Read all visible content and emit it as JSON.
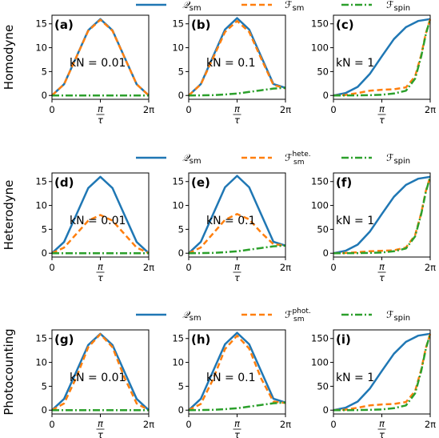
{
  "colors": {
    "Q": "#1f77b4",
    "F": "#ff7f0e",
    "spin": "#2ca02c"
  },
  "rows": [
    {
      "label": "Homodyne",
      "legend": [
        {
          "main": "𝒬",
          "sub": "sm",
          "sup": ""
        },
        {
          "main": "ℱ",
          "sub": "sm",
          "sup": ""
        },
        {
          "main": "ℱ",
          "sub": "spin",
          "sup": ""
        }
      ]
    },
    {
      "label": "Heterodyne",
      "legend": [
        {
          "main": "𝒬",
          "sub": "sm",
          "sup": ""
        },
        {
          "main": "ℱ",
          "sub": "sm",
          "sup": "hete."
        },
        {
          "main": "ℱ",
          "sub": "spin",
          "sup": ""
        }
      ]
    },
    {
      "label": "Photocounting",
      "legend": [
        {
          "main": "𝒬",
          "sub": "sm",
          "sup": ""
        },
        {
          "main": "ℱ",
          "sub": "sm",
          "sup": "phot."
        },
        {
          "main": "ℱ",
          "sub": "spin",
          "sup": ""
        }
      ]
    }
  ],
  "x_ticks": [
    "0",
    "π/τ",
    "2π"
  ],
  "chart_data": [
    {
      "type": "line",
      "panel": "(a)",
      "param_label": "kN = 0.01",
      "xlim": [
        0,
        6.2832
      ],
      "ylim": [
        -0.8,
        16.8
      ],
      "yticks": [
        0,
        5,
        10,
        15
      ],
      "series": [
        {
          "key": "Q",
          "name": "𝒬sm",
          "x": [
            0,
            0.785,
            1.571,
            2.356,
            3.142,
            3.927,
            4.712,
            5.498,
            6.283
          ],
          "y": [
            0,
            2.35,
            8,
            13.65,
            16,
            13.65,
            8,
            2.35,
            0
          ]
        },
        {
          "key": "F",
          "name": "ℱsm",
          "x": [
            0,
            0.785,
            1.571,
            2.356,
            3.142,
            3.927,
            4.712,
            5.498,
            6.283
          ],
          "y": [
            0,
            2.33,
            7.95,
            13.55,
            15.85,
            13.55,
            7.95,
            2.33,
            0.02
          ]
        },
        {
          "key": "spin",
          "name": "ℱspin",
          "x": [
            0,
            0.785,
            1.571,
            2.356,
            3.142,
            3.927,
            4.712,
            5.498,
            6.283
          ],
          "y": [
            0,
            0,
            0,
            0,
            0,
            0,
            0,
            0,
            0
          ]
        }
      ]
    },
    {
      "type": "line",
      "panel": "(b)",
      "param_label": "kN = 0.1",
      "xlim": [
        0,
        6.2832
      ],
      "ylim": [
        -0.8,
        16.8
      ],
      "yticks": [
        0,
        5,
        10,
        15
      ],
      "series": [
        {
          "key": "Q",
          "name": "𝒬sm",
          "x": [
            0,
            0.785,
            1.571,
            2.356,
            3.142,
            3.927,
            4.712,
            5.498,
            6.283
          ],
          "y": [
            0,
            2.37,
            8.1,
            13.8,
            16.2,
            13.8,
            8.1,
            2.4,
            1.6
          ]
        },
        {
          "key": "F",
          "name": "ℱsm",
          "x": [
            0,
            0.785,
            1.571,
            2.356,
            3.142,
            3.927,
            4.712,
            5.498,
            6.283
          ],
          "y": [
            0,
            2.3,
            7.8,
            13.3,
            15.6,
            13.3,
            7.7,
            2.2,
            1.5
          ]
        },
        {
          "key": "spin",
          "name": "ℱspin",
          "x": [
            0,
            0.785,
            1.571,
            2.356,
            3.142,
            3.927,
            4.712,
            5.498,
            6.283
          ],
          "y": [
            0,
            0.02,
            0.08,
            0.2,
            0.4,
            0.75,
            1.1,
            1.45,
            1.6
          ]
        }
      ]
    },
    {
      "type": "line",
      "panel": "(c)",
      "param_label": "kN = 1",
      "xlim": [
        0,
        6.2832
      ],
      "ylim": [
        -8,
        168
      ],
      "yticks": [
        0,
        50,
        100,
        150
      ],
      "series": [
        {
          "key": "Q",
          "name": "𝒬sm",
          "x": [
            0,
            0.785,
            1.571,
            2.356,
            3.142,
            3.927,
            4.712,
            5.498,
            6.283
          ],
          "y": [
            0,
            5,
            18,
            45,
            82,
            118,
            143,
            156,
            160
          ]
        },
        {
          "key": "F",
          "name": "ℱsm",
          "x": [
            0,
            0.785,
            1.571,
            2.356,
            3.142,
            3.927,
            4.712,
            5.3,
            5.7,
            6.0,
            6.283
          ],
          "y": [
            0,
            1,
            5,
            10,
            12,
            13,
            17,
            40,
            85,
            130,
            160
          ]
        },
        {
          "key": "spin",
          "name": "ℱspin",
          "x": [
            0,
            0.785,
            1.571,
            2.356,
            3.142,
            3.927,
            4.712,
            5.3,
            5.7,
            6.0,
            6.283
          ],
          "y": [
            0,
            0,
            0.2,
            0.6,
            1.5,
            4,
            10,
            35,
            82,
            128,
            160
          ]
        }
      ]
    },
    {
      "type": "line",
      "panel": "(d)",
      "param_label": "kN = 0.01",
      "xlim": [
        0,
        6.2832
      ],
      "ylim": [
        -0.8,
        16.8
      ],
      "yticks": [
        0,
        5,
        10,
        15
      ],
      "series": [
        {
          "key": "Q",
          "name": "𝒬sm",
          "x": [
            0,
            0.785,
            1.571,
            2.356,
            3.142,
            3.927,
            4.712,
            5.498,
            6.283
          ],
          "y": [
            0,
            2.35,
            8,
            13.65,
            16,
            13.65,
            8,
            2.35,
            0
          ]
        },
        {
          "key": "F",
          "name": "ℱsm hete.",
          "x": [
            0,
            0.785,
            1.571,
            2.356,
            3.142,
            3.927,
            4.712,
            5.498,
            6.283
          ],
          "y": [
            0,
            1.17,
            4,
            6.83,
            8,
            6.83,
            4,
            1.17,
            0
          ]
        },
        {
          "key": "spin",
          "name": "ℱspin",
          "x": [
            0,
            0.785,
            1.571,
            2.356,
            3.142,
            3.927,
            4.712,
            5.498,
            6.283
          ],
          "y": [
            0,
            0,
            0,
            0,
            0,
            0,
            0,
            0,
            0
          ]
        }
      ]
    },
    {
      "type": "line",
      "panel": "(e)",
      "param_label": "kN = 0.1",
      "xlim": [
        0,
        6.2832
      ],
      "ylim": [
        -0.8,
        16.8
      ],
      "yticks": [
        0,
        5,
        10,
        15
      ],
      "series": [
        {
          "key": "Q",
          "name": "𝒬sm",
          "x": [
            0,
            0.785,
            1.571,
            2.356,
            3.142,
            3.927,
            4.712,
            5.498,
            6.283
          ],
          "y": [
            0,
            2.37,
            8.1,
            13.8,
            16.2,
            13.8,
            8.1,
            2.4,
            1.6
          ]
        },
        {
          "key": "F",
          "name": "ℱsm hete.",
          "x": [
            0,
            0.785,
            1.571,
            2.356,
            3.142,
            3.927,
            4.712,
            5.498,
            6.283
          ],
          "y": [
            0,
            1.2,
            4.1,
            7,
            8.2,
            7.1,
            4.3,
            1.9,
            1.6
          ]
        },
        {
          "key": "spin",
          "name": "ℱspin",
          "x": [
            0,
            0.785,
            1.571,
            2.356,
            3.142,
            3.927,
            4.712,
            5.498,
            6.283
          ],
          "y": [
            0,
            0.02,
            0.08,
            0.2,
            0.4,
            0.75,
            1.1,
            1.45,
            1.6
          ]
        }
      ]
    },
    {
      "type": "line",
      "panel": "(f)",
      "param_label": "kN = 1",
      "xlim": [
        0,
        6.2832
      ],
      "ylim": [
        -8,
        168
      ],
      "yticks": [
        0,
        50,
        100,
        150
      ],
      "series": [
        {
          "key": "Q",
          "name": "𝒬sm",
          "x": [
            0,
            0.785,
            1.571,
            2.356,
            3.142,
            3.927,
            4.712,
            5.498,
            6.283
          ],
          "y": [
            0,
            5,
            18,
            45,
            82,
            118,
            143,
            156,
            160
          ]
        },
        {
          "key": "F",
          "name": "ℱsm hete.",
          "x": [
            0,
            0.785,
            1.571,
            2.356,
            3.142,
            3.927,
            4.712,
            5.3,
            5.7,
            6.0,
            6.283
          ],
          "y": [
            0,
            0.5,
            2,
            4,
            5,
            6,
            12,
            38,
            84,
            130,
            160
          ]
        },
        {
          "key": "spin",
          "name": "ℱspin",
          "x": [
            0,
            0.785,
            1.571,
            2.356,
            3.142,
            3.927,
            4.712,
            5.3,
            5.7,
            6.0,
            6.283
          ],
          "y": [
            0,
            0,
            0.2,
            0.6,
            1.5,
            4,
            10,
            35,
            82,
            128,
            160
          ]
        }
      ]
    },
    {
      "type": "line",
      "panel": "(g)",
      "param_label": "kN = 0.01",
      "xlim": [
        0,
        6.2832
      ],
      "ylim": [
        -0.8,
        16.8
      ],
      "yticks": [
        0,
        5,
        10,
        15
      ],
      "series": [
        {
          "key": "Q",
          "name": "𝒬sm",
          "x": [
            0,
            0.785,
            1.571,
            2.356,
            3.142,
            3.927,
            4.712,
            5.498,
            6.283
          ],
          "y": [
            0,
            2.35,
            8,
            13.65,
            16,
            13.65,
            8,
            2.35,
            0
          ]
        },
        {
          "key": "F",
          "name": "ℱsm phot.",
          "x": [
            0,
            0.785,
            1.571,
            2.356,
            3.142,
            3.927,
            4.712,
            5.498,
            6.283
          ],
          "y": [
            0,
            1.4,
            6.8,
            13.2,
            15.9,
            13.2,
            6.8,
            1.4,
            0
          ]
        },
        {
          "key": "spin",
          "name": "ℱspin",
          "x": [
            0,
            0.785,
            1.571,
            2.356,
            3.142,
            3.927,
            4.712,
            5.498,
            6.283
          ],
          "y": [
            0,
            0,
            0,
            0,
            0,
            0,
            0,
            0,
            0
          ]
        }
      ]
    },
    {
      "type": "line",
      "panel": "(h)",
      "param_label": "kN = 0.1",
      "xlim": [
        0,
        6.2832
      ],
      "ylim": [
        -0.8,
        16.8
      ],
      "yticks": [
        0,
        5,
        10,
        15
      ],
      "series": [
        {
          "key": "Q",
          "name": "𝒬sm",
          "x": [
            0,
            0.785,
            1.571,
            2.356,
            3.142,
            3.927,
            4.712,
            5.498,
            6.283
          ],
          "y": [
            0,
            2.37,
            8.1,
            13.8,
            16.2,
            13.8,
            8.1,
            2.4,
            1.6
          ]
        },
        {
          "key": "F",
          "name": "ℱsm phot.",
          "x": [
            0,
            0.785,
            1.571,
            2.356,
            3.142,
            3.927,
            4.712,
            5.498,
            6.283
          ],
          "y": [
            0,
            1.3,
            6.4,
            12.8,
            15.6,
            12.9,
            6.6,
            1.8,
            1.5
          ]
        },
        {
          "key": "spin",
          "name": "ℱspin",
          "x": [
            0,
            0.785,
            1.571,
            2.356,
            3.142,
            3.927,
            4.712,
            5.498,
            6.283
          ],
          "y": [
            0,
            0.02,
            0.08,
            0.2,
            0.4,
            0.75,
            1.1,
            1.45,
            1.6
          ]
        }
      ]
    },
    {
      "type": "line",
      "panel": "(i)",
      "param_label": "kN = 1",
      "xlim": [
        0,
        6.2832
      ],
      "ylim": [
        -8,
        168
      ],
      "yticks": [
        0,
        50,
        100,
        150
      ],
      "series": [
        {
          "key": "Q",
          "name": "𝒬sm",
          "x": [
            0,
            0.785,
            1.571,
            2.356,
            3.142,
            3.927,
            4.712,
            5.498,
            6.283
          ],
          "y": [
            0,
            5,
            18,
            45,
            82,
            118,
            143,
            156,
            160
          ]
        },
        {
          "key": "F",
          "name": "ℱsm phot.",
          "x": [
            0,
            0.785,
            1.571,
            2.356,
            3.142,
            3.927,
            4.712,
            5.3,
            5.7,
            6.0,
            6.283
          ],
          "y": [
            0,
            1,
            5,
            10,
            12,
            13,
            17,
            40,
            85,
            130,
            160
          ]
        },
        {
          "key": "spin",
          "name": "ℱspin",
          "x": [
            0,
            0.785,
            1.571,
            2.356,
            3.142,
            3.927,
            4.712,
            5.3,
            5.7,
            6.0,
            6.283
          ],
          "y": [
            0,
            0,
            0.2,
            0.6,
            1.5,
            4,
            10,
            35,
            82,
            128,
            160
          ]
        }
      ]
    }
  ]
}
